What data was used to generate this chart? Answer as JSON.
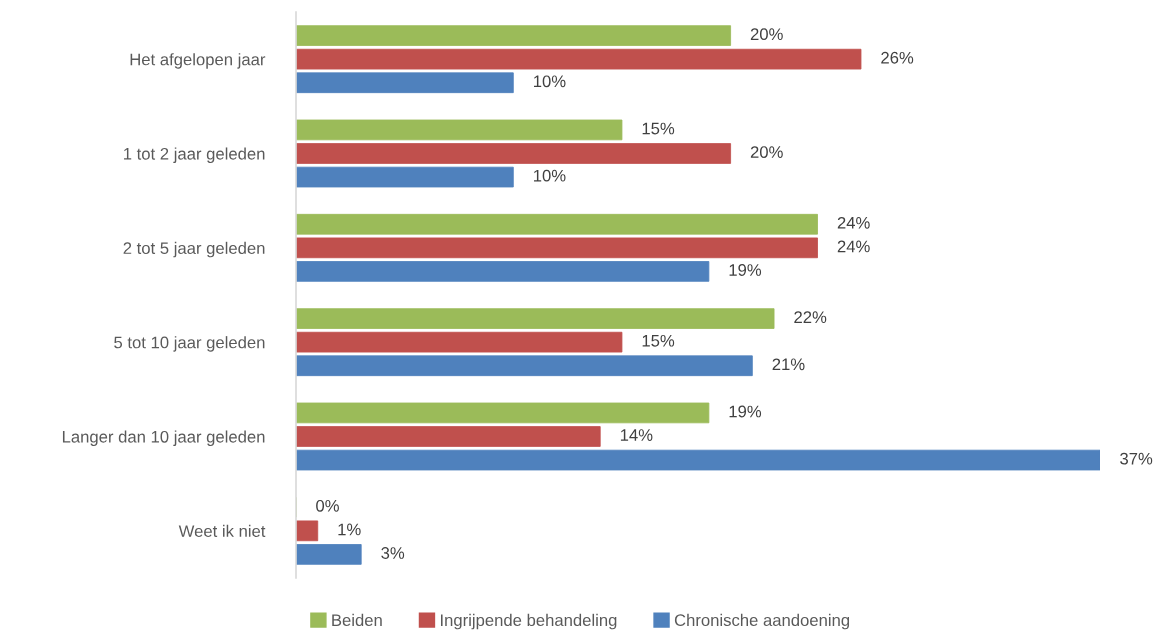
{
  "chart_data": {
    "type": "bar",
    "orientation": "horizontal",
    "legend": "bottom",
    "grid": false,
    "categories": [
      "Het afgelopen jaar",
      "1 tot 2 jaar geleden",
      "2 tot 5 jaar geleden",
      "5 tot 10 jaar geleden",
      "Langer dan 10 jaar geleden",
      "Weet ik niet"
    ],
    "series": [
      {
        "name": "Beiden",
        "color": "#9bbb59",
        "values": [
          20,
          15,
          24,
          22,
          19,
          0
        ],
        "value_labels": [
          "20%",
          "15%",
          "24%",
          "22%",
          "19%",
          "0%"
        ]
      },
      {
        "name": "Ingrijpende behandeling",
        "color": "#c0504d",
        "values": [
          26,
          20,
          24,
          15,
          14,
          1
        ],
        "value_labels": [
          "26%",
          "20%",
          "24%",
          "15%",
          "14%",
          "1%"
        ]
      },
      {
        "name": "Chronische aandoening",
        "color": "#4f81bd",
        "values": [
          10,
          10,
          19,
          21,
          37,
          3
        ],
        "value_labels": [
          "10%",
          "10%",
          "19%",
          "21%",
          "37%",
          "3%"
        ]
      }
    ]
  }
}
